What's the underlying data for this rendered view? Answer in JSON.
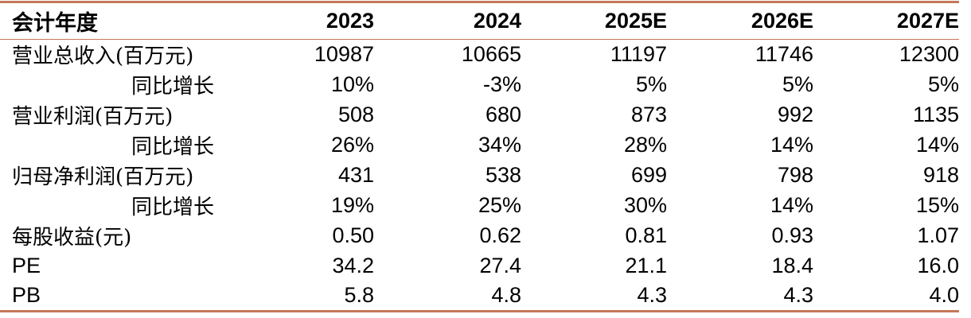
{
  "colors": {
    "rule": "#c4785a",
    "text": "#000000",
    "background": "#ffffff"
  },
  "table": {
    "header": [
      "会计年度",
      "2023",
      "2024",
      "2025E",
      "2026E",
      "2027E"
    ],
    "rows": [
      {
        "label": "营业总收入(百万元)",
        "values": [
          "10987",
          "10665",
          "11197",
          "11746",
          "12300"
        ]
      },
      {
        "label": "同比增长",
        "values": [
          "10%",
          "-3%",
          "5%",
          "5%",
          "5%"
        ]
      },
      {
        "label": "营业利润(百万元)",
        "values": [
          "508",
          "680",
          "873",
          "992",
          "1135"
        ]
      },
      {
        "label": "同比增长",
        "values": [
          "26%",
          "34%",
          "28%",
          "14%",
          "14%"
        ]
      },
      {
        "label": "归母净利润(百万元)",
        "values": [
          "431",
          "538",
          "699",
          "798",
          "918"
        ]
      },
      {
        "label": "同比增长",
        "values": [
          "19%",
          "25%",
          "30%",
          "14%",
          "15%"
        ]
      },
      {
        "label": "每股收益(元)",
        "values": [
          "0.50",
          "0.62",
          "0.81",
          "0.93",
          "1.07"
        ]
      },
      {
        "label": "PE",
        "values": [
          "34.2",
          "27.4",
          "21.1",
          "18.4",
          "16.0"
        ]
      },
      {
        "label": "PB",
        "values": [
          "5.8",
          "4.8",
          "4.3",
          "4.3",
          "4.0"
        ]
      }
    ]
  }
}
